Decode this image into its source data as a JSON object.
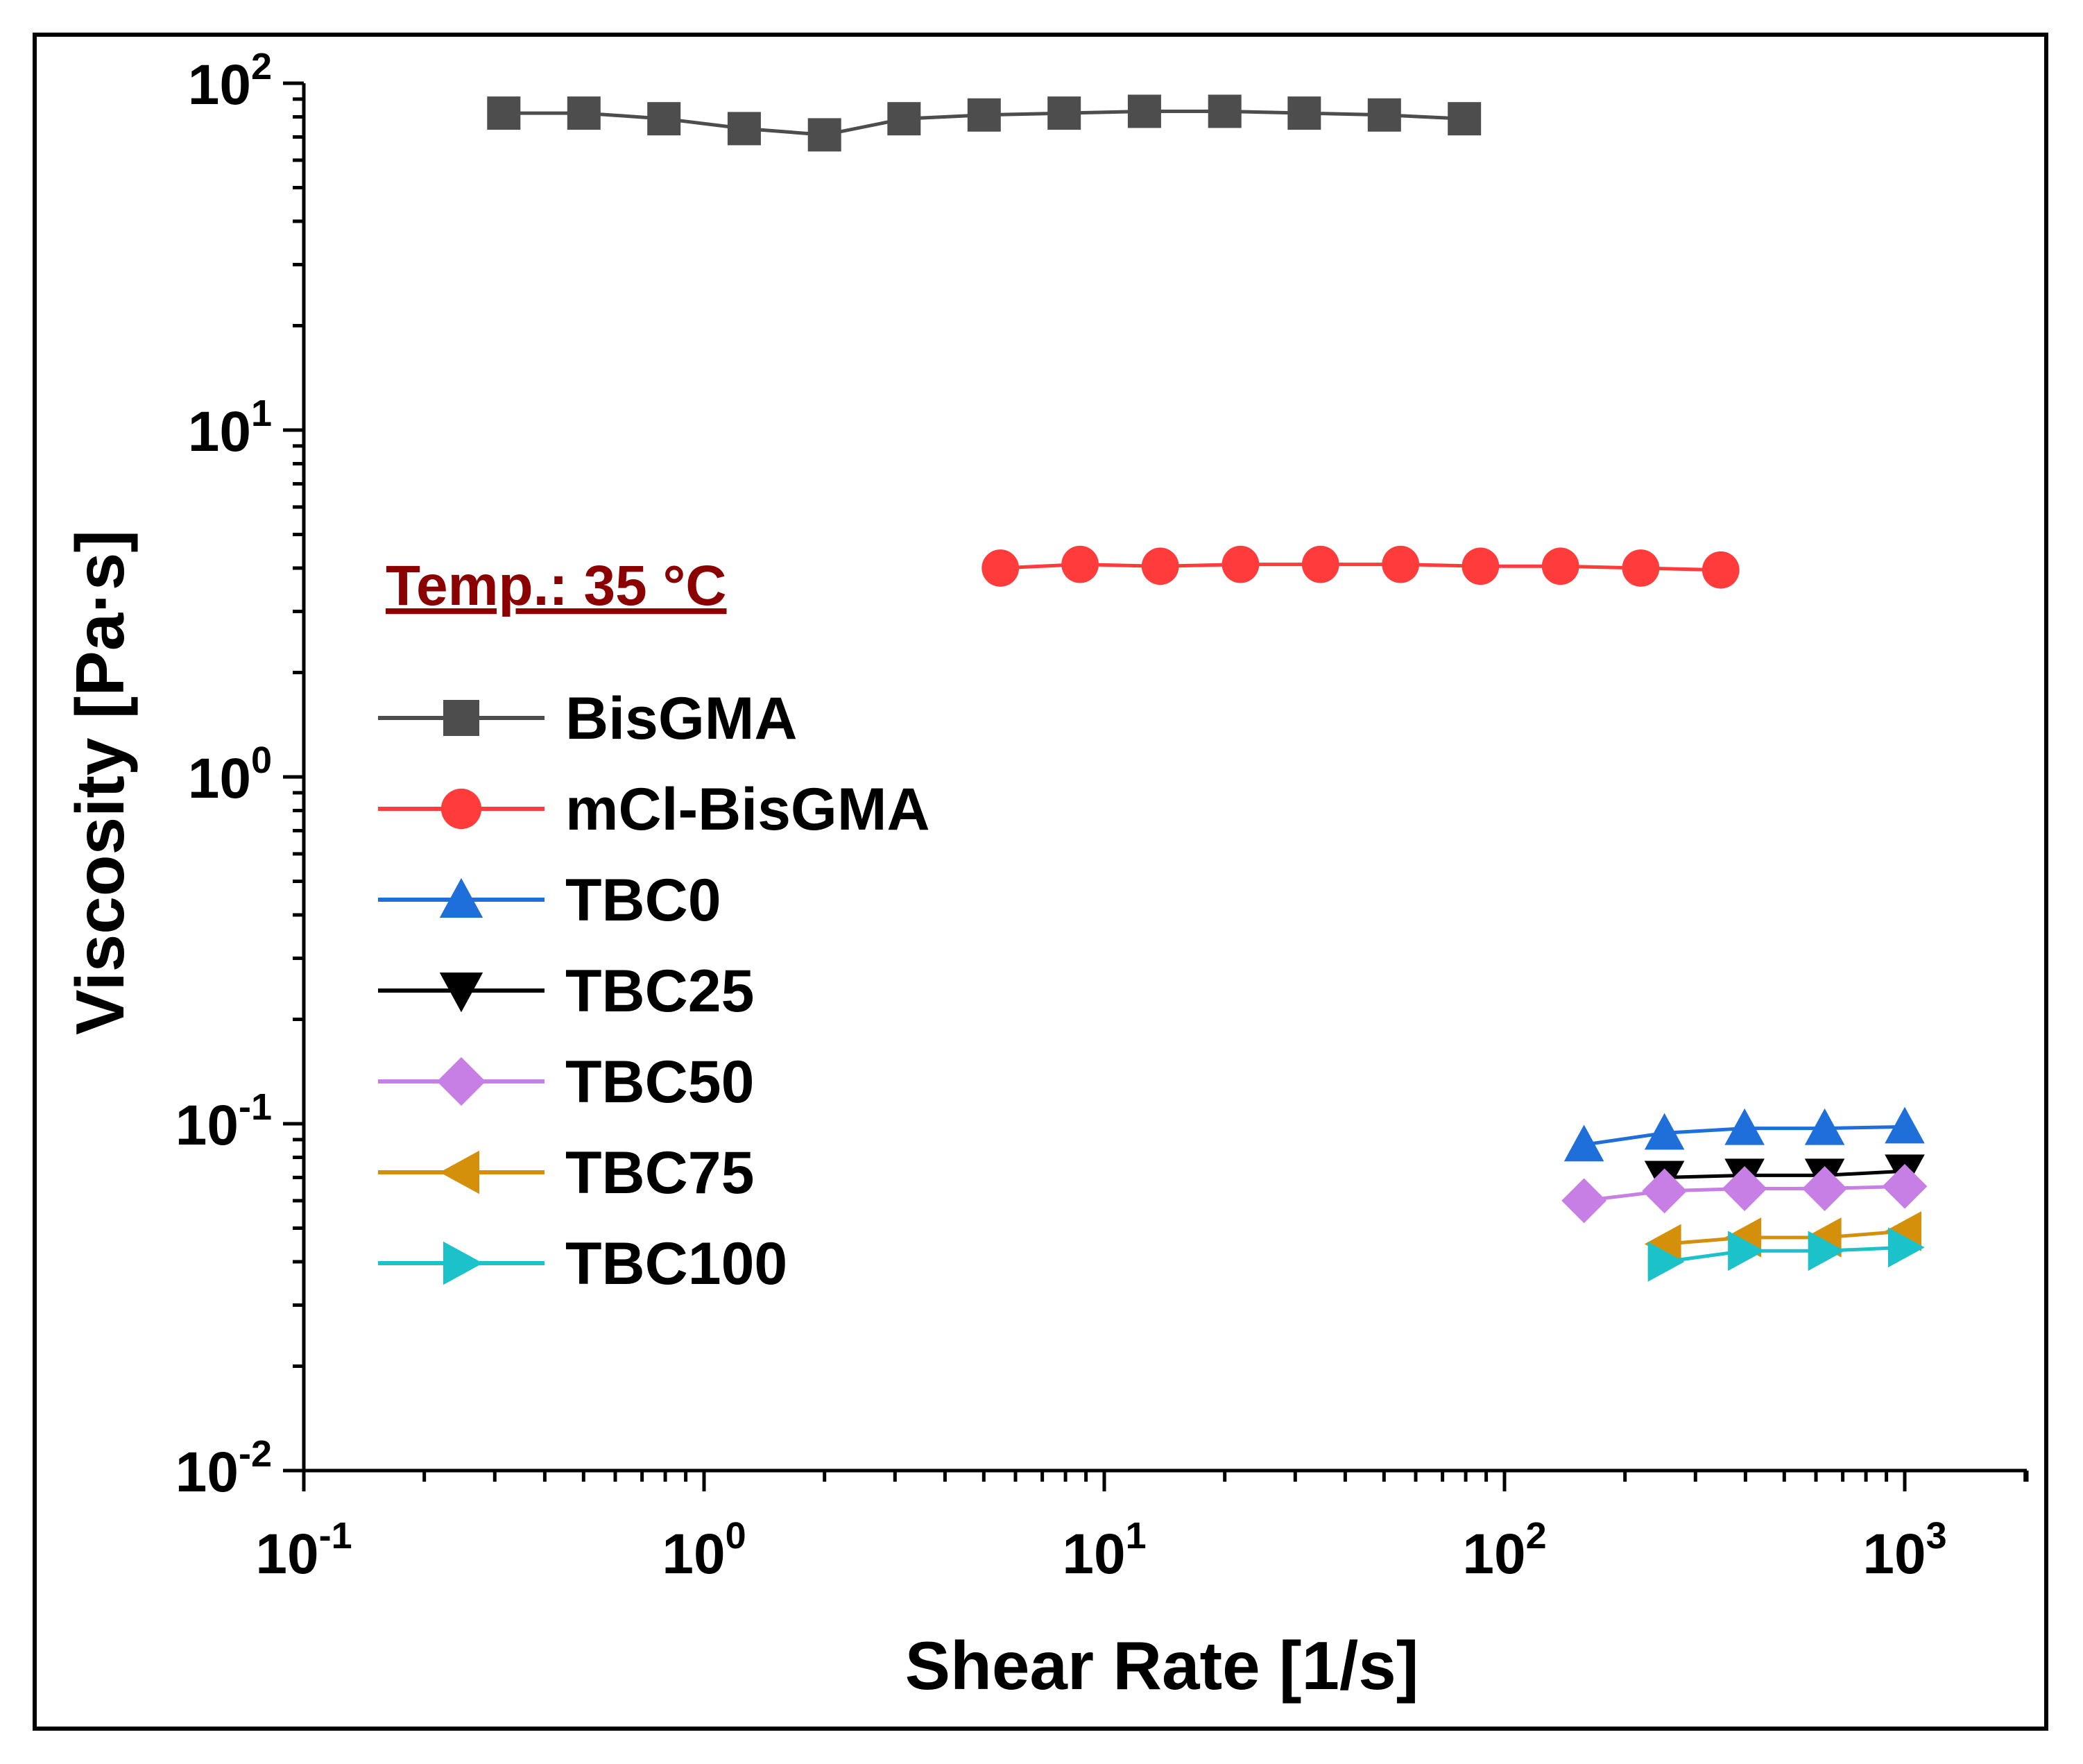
{
  "chart_data": {
    "type": "line",
    "title": "",
    "xlabel": "Shear Rate [1/s]",
    "ylabel": "Viscosity [Pa·s]",
    "xscale": "log",
    "yscale": "log",
    "xlim": [
      0.1,
      3000
    ],
    "ylim": [
      0.01,
      100
    ],
    "x_ticks": [
      {
        "base": "10",
        "exp": "-1",
        "value": 0.1
      },
      {
        "base": "10",
        "exp": "0",
        "value": 1
      },
      {
        "base": "10",
        "exp": "1",
        "value": 10
      },
      {
        "base": "10",
        "exp": "2",
        "value": 100
      },
      {
        "base": "10",
        "exp": "3",
        "value": 1000
      }
    ],
    "y_ticks": [
      {
        "base": "10",
        "exp": "-2",
        "value": 0.01
      },
      {
        "base": "10",
        "exp": "-1",
        "value": 0.1
      },
      {
        "base": "10",
        "exp": "0",
        "value": 1
      },
      {
        "base": "10",
        "exp": "1",
        "value": 10
      },
      {
        "base": "10",
        "exp": "2",
        "value": 100
      }
    ],
    "annotation": "Temp.: 35 °C",
    "annotation_color": "#8B0000",
    "legend_position": "center-left",
    "series": [
      {
        "name": "BisGMA",
        "color": "#4D4D4D",
        "marker": "square",
        "x": [
          0.316,
          0.501,
          0.794,
          1.26,
          2.0,
          3.16,
          5.01,
          7.94,
          12.6,
          20.0,
          31.6,
          50.1,
          79.4
        ],
        "y": [
          82,
          82,
          79,
          74,
          71,
          79,
          81,
          82,
          83,
          83,
          82,
          81,
          79
        ]
      },
      {
        "name": "mCl-BisGMA",
        "color": "#FF3B3B",
        "marker": "circle",
        "x": [
          5.5,
          8.7,
          13.8,
          21.9,
          34.7,
          55.0,
          87.1,
          138,
          219,
          347
        ],
        "y": [
          4.0,
          4.1,
          4.05,
          4.1,
          4.1,
          4.1,
          4.05,
          4.05,
          4.0,
          3.95
        ]
      },
      {
        "name": "TBC0",
        "color": "#1F6FDB",
        "marker": "triangle-up",
        "x": [
          158,
          251,
          398,
          631,
          1000
        ],
        "y": [
          0.087,
          0.094,
          0.097,
          0.097,
          0.098
        ]
      },
      {
        "name": "TBC25",
        "color": "#000000",
        "marker": "triangle-down",
        "x": [
          251,
          398,
          631,
          1000
        ],
        "y": [
          0.07,
          0.071,
          0.071,
          0.073
        ]
      },
      {
        "name": "TBC50",
        "color": "#C77FE5",
        "marker": "diamond",
        "x": [
          158,
          251,
          398,
          631,
          1000
        ],
        "y": [
          0.06,
          0.064,
          0.065,
          0.065,
          0.066
        ]
      },
      {
        "name": "TBC75",
        "color": "#D4900B",
        "marker": "triangle-left",
        "x": [
          251,
          398,
          631,
          1000
        ],
        "y": [
          0.045,
          0.047,
          0.047,
          0.049
        ]
      },
      {
        "name": "TBC100",
        "color": "#1CC2C9",
        "marker": "triangle-right",
        "x": [
          251,
          398,
          631,
          1000
        ],
        "y": [
          0.04,
          0.043,
          0.043,
          0.044
        ]
      }
    ]
  }
}
